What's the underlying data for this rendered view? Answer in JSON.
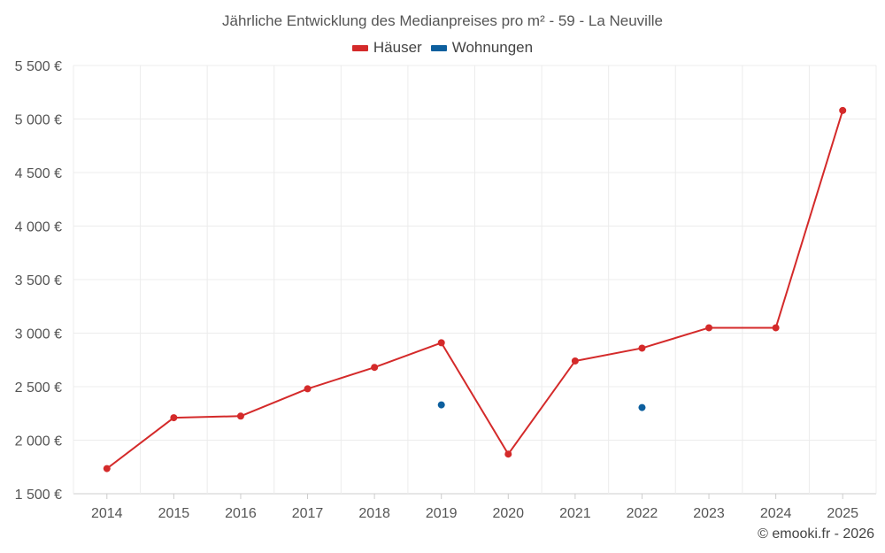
{
  "chart_data": {
    "type": "line",
    "title": "Jährliche Entwicklung des Medianpreises pro m² - 59 - La Neuville",
    "categories": [
      "2014",
      "2015",
      "2016",
      "2017",
      "2018",
      "2019",
      "2020",
      "2021",
      "2022",
      "2023",
      "2024",
      "2025"
    ],
    "series": [
      {
        "name": "Häuser",
        "color": "#d42a2a",
        "values": [
          1735,
          2210,
          2225,
          2480,
          2680,
          2910,
          1870,
          2740,
          2860,
          3050,
          3050,
          5080
        ]
      },
      {
        "name": "Wohnungen",
        "color": "#0d5f9e",
        "values": [
          null,
          null,
          null,
          null,
          null,
          2330,
          null,
          null,
          2305,
          null,
          null,
          null
        ]
      }
    ],
    "y_ticks": [
      "1 500 €",
      "2 000 €",
      "2 500 €",
      "3 000 €",
      "3 500 €",
      "4 000 €",
      "4 500 €",
      "5 000 €",
      "5 500 €"
    ],
    "ylim": [
      1500,
      5500
    ],
    "grid": true,
    "legend_position": "top-center"
  },
  "credit": "© emooki.fr - 2026"
}
